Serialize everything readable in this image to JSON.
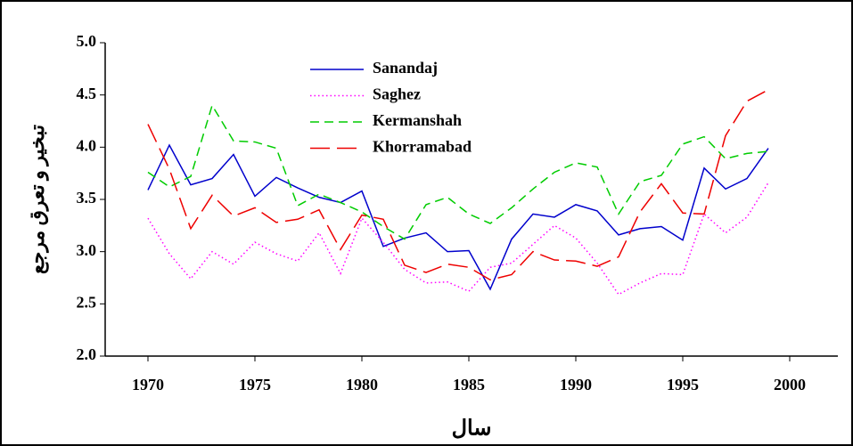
{
  "chart_data": {
    "type": "line",
    "y_label": "تبخیر و تعرق مرجع",
    "x_label": "سال",
    "x": [
      1970,
      1971,
      1972,
      1973,
      1974,
      1975,
      1976,
      1977,
      1978,
      1979,
      1980,
      1981,
      1982,
      1983,
      1984,
      1985,
      1986,
      1987,
      1988,
      1989,
      1990,
      1991,
      1992,
      1993,
      1994,
      1995,
      1996,
      1997,
      1998,
      1999
    ],
    "series": [
      {
        "name": "Sanandaj",
        "color": "#0000cc",
        "style": "solid",
        "values": [
          3.59,
          4.02,
          3.64,
          3.7,
          3.93,
          3.53,
          3.71,
          3.61,
          3.52,
          3.47,
          3.58,
          3.05,
          3.13,
          3.18,
          3.0,
          3.01,
          2.64,
          3.12,
          3.36,
          3.33,
          3.45,
          3.39,
          3.16,
          3.22,
          3.24,
          3.11,
          3.8,
          3.6,
          3.7,
          3.99
        ]
      },
      {
        "name": "Saghez",
        "color": "#ff00ff",
        "style": "dotted",
        "values": [
          3.32,
          2.98,
          2.74,
          3.0,
          2.88,
          3.09,
          2.98,
          2.91,
          3.18,
          2.79,
          3.32,
          3.09,
          2.83,
          2.7,
          2.71,
          2.62,
          2.85,
          2.89,
          3.07,
          3.25,
          3.13,
          2.89,
          2.59,
          2.7,
          2.79,
          2.78,
          3.36,
          3.18,
          3.33,
          3.66
        ]
      },
      {
        "name": "Kermanshah",
        "color": "#00cc00",
        "style": "dashed",
        "values": [
          3.76,
          3.62,
          3.72,
          4.4,
          4.06,
          4.05,
          3.99,
          3.44,
          3.55,
          3.47,
          3.38,
          3.24,
          3.12,
          3.45,
          3.52,
          3.36,
          3.27,
          3.42,
          3.6,
          3.76,
          3.85,
          3.81,
          3.36,
          3.67,
          3.73,
          4.03,
          4.1,
          3.89,
          3.94,
          3.96
        ]
      },
      {
        "name": "Khorramabad",
        "color": "#ee0000",
        "style": "longdash",
        "values": [
          4.22,
          3.79,
          3.22,
          3.54,
          3.34,
          3.42,
          3.28,
          3.31,
          3.4,
          3.02,
          3.35,
          3.31,
          2.87,
          2.8,
          2.88,
          2.85,
          2.73,
          2.78,
          3.0,
          2.92,
          2.91,
          2.86,
          2.95,
          3.38,
          3.65,
          3.37,
          3.36,
          4.11,
          4.44,
          4.55
        ]
      }
    ],
    "xlim": [
      1968,
      2002.25
    ],
    "xticks": [
      1970,
      1975,
      1980,
      1985,
      1990,
      1995,
      2000
    ],
    "ylim": [
      2,
      5
    ],
    "yticks": [
      {
        "value": 2,
        "label": "2.0"
      },
      {
        "value": 2.5,
        "label": "2.5"
      },
      {
        "value": 3,
        "label": "3.0"
      },
      {
        "value": 3.5,
        "label": "3.5"
      },
      {
        "value": 4,
        "label": "4.0"
      },
      {
        "value": 4.5,
        "label": "4.5"
      },
      {
        "value": 5,
        "label": "5.0"
      }
    ],
    "legend": "upper-left"
  }
}
